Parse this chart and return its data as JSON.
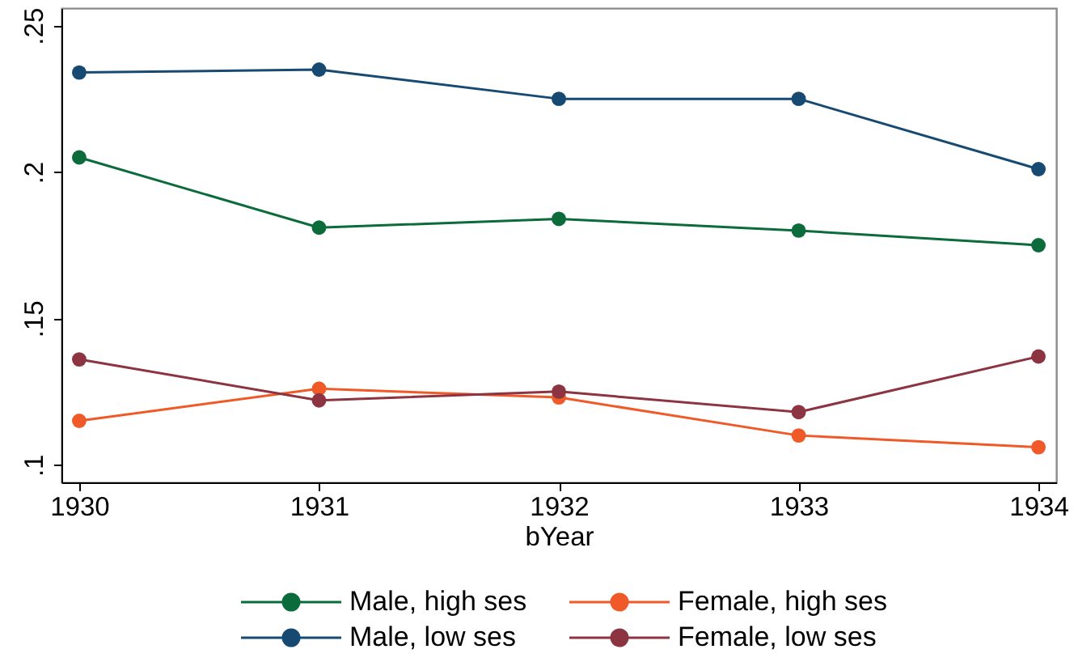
{
  "chart_data": {
    "type": "line",
    "xlabel": "bYear",
    "x": [
      1930,
      1931,
      1932,
      1933,
      1934
    ],
    "series": [
      {
        "name": "Male, high ses",
        "color": "#0b6b3a",
        "values": [
          0.205,
          0.181,
          0.184,
          0.18,
          0.175
        ]
      },
      {
        "name": "Female, high ses",
        "color": "#f05a28",
        "values": [
          0.115,
          0.126,
          0.123,
          0.11,
          0.106
        ]
      },
      {
        "name": "Male, low ses",
        "color": "#174a72",
        "values": [
          0.234,
          0.235,
          0.225,
          0.225,
          0.201
        ]
      },
      {
        "name": "Female, low ses",
        "color": "#8c3441",
        "values": [
          0.136,
          0.122,
          0.125,
          0.118,
          0.137
        ]
      }
    ],
    "xlim": [
      1929.926,
      1934.074
    ],
    "xticks": [
      1930,
      1931,
      1932,
      1933,
      1934
    ],
    "ylim": [
      0.094,
      0.256
    ],
    "yticks": [
      {
        "value": 0.1,
        "label": ".1"
      },
      {
        "value": 0.15,
        "label": ".15"
      },
      {
        "value": 0.2,
        "label": ".2"
      },
      {
        "value": 0.25,
        "label": ".25"
      }
    ],
    "legend": "bottom",
    "marker": "circle",
    "line_style": "solid"
  }
}
